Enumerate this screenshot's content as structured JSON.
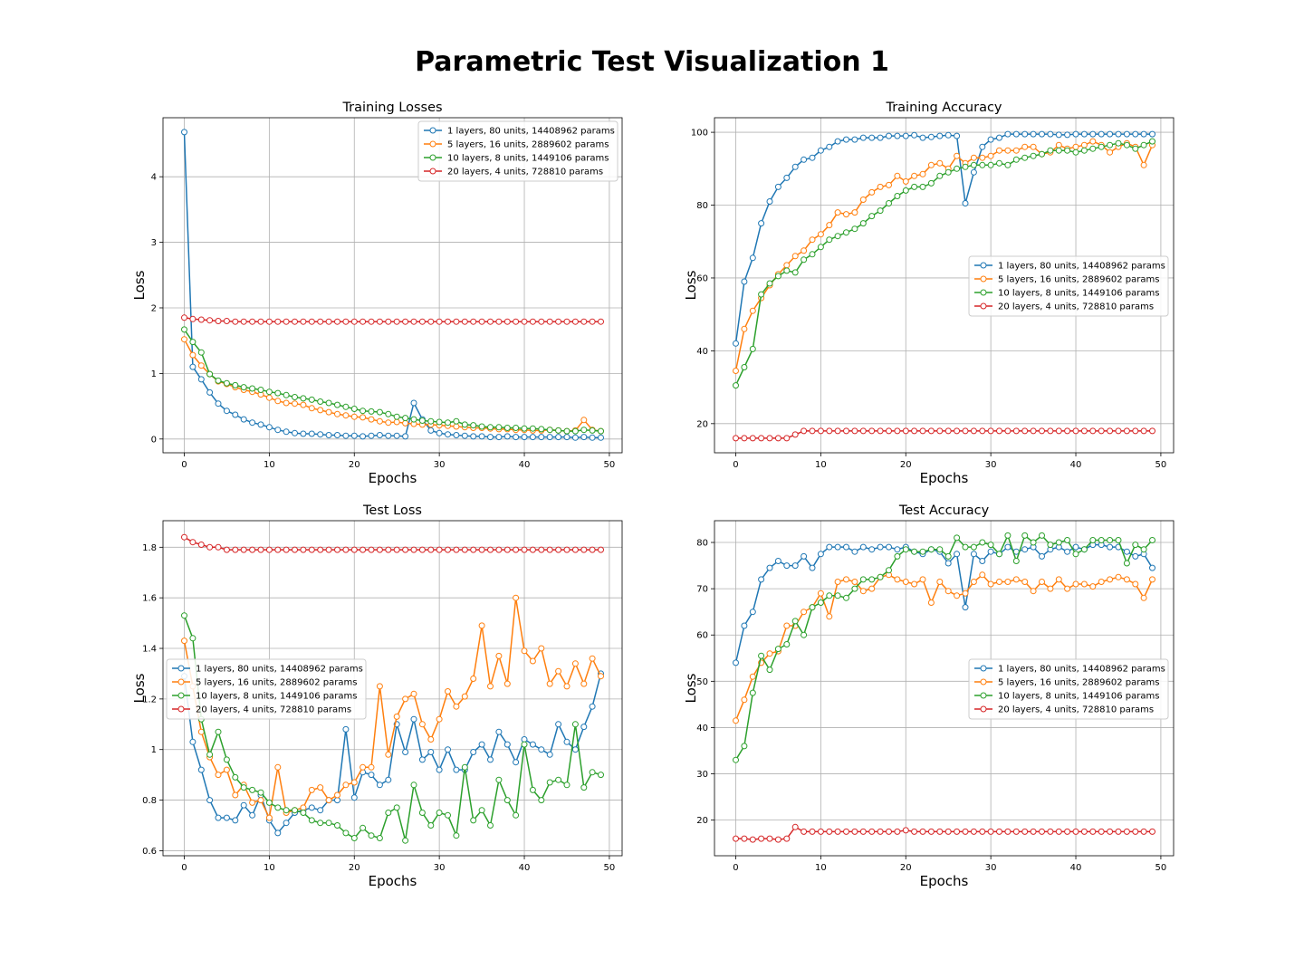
{
  "suptitle": "Parametric Test Visualization 1",
  "colors": {
    "s1": "#1f77b4",
    "s2": "#ff7f0e",
    "s3": "#2ca02c",
    "s4": "#d62728"
  },
  "chart_data": [
    {
      "type": "line",
      "title": "Training Losses",
      "xlabel": "Epochs",
      "ylabel": "Loss",
      "xlim": [
        -2.5,
        51.5
      ],
      "ylim": [
        -0.21,
        4.9
      ],
      "xticks": [
        0,
        10,
        20,
        30,
        40,
        50
      ],
      "yticks": [
        0,
        1,
        2,
        3,
        4
      ],
      "grid": true,
      "legend": "upper right",
      "series": [
        {
          "name": "1 layers, 80 units, 14408962 params",
          "color": "#1f77b4",
          "values": [
            4.68,
            1.1,
            0.91,
            0.71,
            0.54,
            0.43,
            0.37,
            0.3,
            0.25,
            0.22,
            0.18,
            0.14,
            0.11,
            0.09,
            0.08,
            0.08,
            0.07,
            0.06,
            0.06,
            0.05,
            0.05,
            0.04,
            0.05,
            0.06,
            0.05,
            0.05,
            0.04,
            0.55,
            0.3,
            0.13,
            0.09,
            0.07,
            0.06,
            0.05,
            0.04,
            0.04,
            0.03,
            0.03,
            0.04,
            0.03,
            0.03,
            0.03,
            0.03,
            0.03,
            0.03,
            0.03,
            0.02,
            0.03,
            0.02,
            0.02
          ]
        },
        {
          "name": "5 layers, 16 units, 2889602 params",
          "color": "#ff7f0e",
          "values": [
            1.52,
            1.28,
            1.12,
            0.99,
            0.88,
            0.84,
            0.79,
            0.75,
            0.72,
            0.68,
            0.63,
            0.58,
            0.55,
            0.54,
            0.52,
            0.47,
            0.44,
            0.41,
            0.38,
            0.36,
            0.34,
            0.33,
            0.3,
            0.27,
            0.25,
            0.26,
            0.24,
            0.23,
            0.22,
            0.22,
            0.21,
            0.2,
            0.19,
            0.18,
            0.17,
            0.17,
            0.16,
            0.15,
            0.15,
            0.14,
            0.14,
            0.13,
            0.13,
            0.14,
            0.13,
            0.12,
            0.13,
            0.29,
            0.14,
            0.12
          ]
        },
        {
          "name": "10 layers, 8 units, 1449106 params",
          "color": "#2ca02c",
          "values": [
            1.67,
            1.48,
            1.32,
            0.99,
            0.89,
            0.85,
            0.82,
            0.79,
            0.77,
            0.75,
            0.72,
            0.7,
            0.67,
            0.64,
            0.62,
            0.6,
            0.57,
            0.55,
            0.52,
            0.49,
            0.46,
            0.43,
            0.42,
            0.41,
            0.38,
            0.34,
            0.32,
            0.3,
            0.28,
            0.27,
            0.26,
            0.25,
            0.27,
            0.22,
            0.21,
            0.19,
            0.18,
            0.18,
            0.17,
            0.17,
            0.16,
            0.16,
            0.15,
            0.14,
            0.13,
            0.12,
            0.12,
            0.14,
            0.13,
            0.12
          ]
        },
        {
          "name": "20 layers, 4 units, 728810 params",
          "color": "#d62728",
          "values": [
            1.85,
            1.83,
            1.82,
            1.81,
            1.8,
            1.8,
            1.79,
            1.79,
            1.79,
            1.79,
            1.79,
            1.79,
            1.79,
            1.79,
            1.79,
            1.79,
            1.79,
            1.79,
            1.79,
            1.79,
            1.79,
            1.79,
            1.79,
            1.79,
            1.79,
            1.79,
            1.79,
            1.79,
            1.79,
            1.79,
            1.79,
            1.79,
            1.79,
            1.79,
            1.79,
            1.79,
            1.79,
            1.79,
            1.79,
            1.79,
            1.79,
            1.79,
            1.79,
            1.79,
            1.79,
            1.79,
            1.79,
            1.79,
            1.79,
            1.79
          ]
        }
      ]
    },
    {
      "type": "line",
      "title": "Training Accuracy",
      "xlabel": "Epochs",
      "ylabel": "Loss",
      "xlim": [
        -2.5,
        51.5
      ],
      "ylim": [
        12,
        104
      ],
      "xticks": [
        0,
        10,
        20,
        30,
        40,
        50
      ],
      "yticks": [
        20,
        40,
        60,
        80,
        100
      ],
      "grid": true,
      "legend": "center right",
      "series": [
        {
          "name": "1 layers, 80 units, 14408962 params",
          "color": "#1f77b4",
          "values": [
            42,
            59,
            65.5,
            75,
            81,
            85,
            87.5,
            90.5,
            92.5,
            93,
            95,
            96,
            97.5,
            98,
            98,
            98.5,
            98.5,
            98.5,
            99,
            99,
            99,
            99.2,
            98.5,
            98.7,
            99,
            99.2,
            99,
            80.5,
            89,
            96,
            98,
            98.5,
            99.5,
            99.5,
            99.5,
            99.5,
            99.5,
            99.5,
            99.3,
            99.3,
            99.5,
            99.5,
            99.5,
            99.5,
            99.5,
            99.5,
            99.5,
            99.5,
            99.5,
            99.5
          ]
        },
        {
          "name": "5 layers, 16 units, 2889602 params",
          "color": "#ff7f0e",
          "values": [
            34.5,
            46,
            51,
            54.5,
            58,
            61,
            63.5,
            66,
            67.5,
            70.5,
            72,
            74.5,
            78,
            77.5,
            78,
            81.5,
            83.5,
            85,
            85.5,
            88,
            86.5,
            88,
            88.5,
            91,
            91.5,
            90,
            93.5,
            91.5,
            93,
            93,
            93.5,
            95,
            95,
            95,
            96,
            96,
            94,
            94.5,
            96.5,
            95.5,
            96,
            96.5,
            97.5,
            96.5,
            94.5,
            96,
            97,
            96,
            91,
            96.5
          ]
        },
        {
          "name": "10 layers, 8 units, 1449106 params",
          "color": "#2ca02c",
          "values": [
            30.5,
            35.5,
            40.5,
            55.5,
            58.5,
            60.5,
            62,
            61.5,
            65,
            66.5,
            68.5,
            70.5,
            71.5,
            72.5,
            73.5,
            75,
            77,
            78.5,
            80.5,
            82.5,
            84,
            85,
            85,
            86,
            88,
            89,
            90,
            90.5,
            91,
            91,
            91,
            91.5,
            91,
            92.5,
            93,
            93.5,
            94,
            95,
            95,
            95,
            94.5,
            95,
            95.5,
            96,
            96.5,
            97,
            96.5,
            95.5,
            96.5,
            97.5
          ]
        },
        {
          "name": "20 layers, 4 units, 728810 params",
          "color": "#d62728",
          "values": [
            16,
            16,
            16,
            16,
            16,
            16,
            16,
            17,
            18,
            18,
            18,
            18,
            18,
            18,
            18,
            18,
            18,
            18,
            18,
            18,
            18,
            18,
            18,
            18,
            18,
            18,
            18,
            18,
            18,
            18,
            18,
            18,
            18,
            18,
            18,
            18,
            18,
            18,
            18,
            18,
            18,
            18,
            18,
            18,
            18,
            18,
            18,
            18,
            18,
            18
          ]
        }
      ]
    },
    {
      "type": "line",
      "title": "Test Loss",
      "xlabel": "Epochs",
      "ylabel": "Loss",
      "xlim": [
        -2.5,
        51.5
      ],
      "ylim": [
        0.58,
        1.905
      ],
      "xticks": [
        0,
        10,
        20,
        30,
        40,
        50
      ],
      "yticks": [
        0.6,
        0.8,
        1.0,
        1.2,
        1.4,
        1.6,
        1.8
      ],
      "grid": true,
      "legend": "center left",
      "series": [
        {
          "name": "1 layers, 80 units, 14408962 params",
          "color": "#1f77b4",
          "values": [
            1.29,
            1.03,
            0.92,
            0.8,
            0.73,
            0.73,
            0.72,
            0.78,
            0.74,
            0.82,
            0.72,
            0.67,
            0.71,
            0.75,
            0.76,
            0.77,
            0.76,
            0.8,
            0.8,
            1.08,
            0.81,
            0.91,
            0.9,
            0.86,
            0.88,
            1.1,
            0.99,
            1.12,
            0.96,
            0.99,
            0.92,
            1.0,
            0.92,
            0.92,
            0.99,
            1.02,
            0.96,
            1.07,
            1.02,
            0.95,
            1.04,
            1.02,
            1.0,
            0.98,
            1.1,
            1.03,
            1.0,
            1.09,
            1.17,
            1.3
          ]
        },
        {
          "name": "5 layers, 16 units, 2889602 params",
          "color": "#ff7f0e",
          "values": [
            1.43,
            1.25,
            1.07,
            0.97,
            0.9,
            0.92,
            0.82,
            0.86,
            0.79,
            0.8,
            0.73,
            0.93,
            0.75,
            0.76,
            0.77,
            0.84,
            0.85,
            0.8,
            0.82,
            0.86,
            0.87,
            0.93,
            0.93,
            1.25,
            0.98,
            1.13,
            1.2,
            1.22,
            1.1,
            1.04,
            1.12,
            1.23,
            1.17,
            1.21,
            1.28,
            1.49,
            1.25,
            1.37,
            1.26,
            1.6,
            1.39,
            1.35,
            1.4,
            1.26,
            1.31,
            1.25,
            1.34,
            1.26,
            1.36,
            1.29
          ]
        },
        {
          "name": "10 layers, 8 units, 1449106 params",
          "color": "#2ca02c",
          "values": [
            1.53,
            1.44,
            1.12,
            0.98,
            1.07,
            0.96,
            0.89,
            0.85,
            0.84,
            0.83,
            0.79,
            0.77,
            0.76,
            0.76,
            0.75,
            0.72,
            0.71,
            0.71,
            0.7,
            0.67,
            0.65,
            0.69,
            0.66,
            0.65,
            0.75,
            0.77,
            0.64,
            0.86,
            0.75,
            0.7,
            0.75,
            0.74,
            0.66,
            0.93,
            0.72,
            0.76,
            0.7,
            0.88,
            0.8,
            0.74,
            1.02,
            0.84,
            0.8,
            0.87,
            0.88,
            0.86,
            1.1,
            0.85,
            0.91,
            0.9
          ]
        },
        {
          "name": "20 layers, 4 units, 728810 params",
          "color": "#d62728",
          "values": [
            1.84,
            1.82,
            1.81,
            1.8,
            1.8,
            1.79,
            1.79,
            1.79,
            1.79,
            1.79,
            1.79,
            1.79,
            1.79,
            1.79,
            1.79,
            1.79,
            1.79,
            1.79,
            1.79,
            1.79,
            1.79,
            1.79,
            1.79,
            1.79,
            1.79,
            1.79,
            1.79,
            1.79,
            1.79,
            1.79,
            1.79,
            1.79,
            1.79,
            1.79,
            1.79,
            1.79,
            1.79,
            1.79,
            1.79,
            1.79,
            1.79,
            1.79,
            1.79,
            1.79,
            1.79,
            1.79,
            1.79,
            1.79,
            1.79,
            1.79
          ]
        }
      ]
    },
    {
      "type": "line",
      "title": "Test Accuracy",
      "xlabel": "Epochs",
      "ylabel": "Loss",
      "xlim": [
        -2.5,
        51.5
      ],
      "ylim": [
        12.3,
        84.7
      ],
      "xticks": [
        0,
        10,
        20,
        30,
        40,
        50
      ],
      "yticks": [
        20,
        30,
        40,
        50,
        60,
        70,
        80
      ],
      "grid": true,
      "legend": "center right",
      "series": [
        {
          "name": "1 layers, 80 units, 14408962 params",
          "color": "#1f77b4",
          "values": [
            54,
            62,
            65,
            72,
            74.5,
            76,
            75,
            75,
            77,
            74.5,
            77.5,
            79,
            79,
            79,
            78,
            79,
            78.5,
            79,
            79,
            78.5,
            79,
            78,
            77.5,
            78.5,
            78,
            75.5,
            77.5,
            66,
            77.5,
            76,
            78,
            77.5,
            79,
            78,
            78.5,
            79,
            77,
            78.5,
            79,
            78,
            79,
            78.5,
            79.5,
            79.5,
            79,
            79,
            78,
            77,
            77.5,
            74.5
          ]
        },
        {
          "name": "5 layers, 16 units, 2889602 params",
          "color": "#ff7f0e",
          "values": [
            41.5,
            46,
            51,
            54,
            56,
            56.5,
            62,
            62,
            65,
            66,
            69,
            64,
            71.5,
            72,
            71.5,
            69.5,
            70,
            72.5,
            73,
            72,
            71.5,
            71,
            72,
            67,
            71.5,
            69.5,
            68.5,
            69,
            71.5,
            73,
            71,
            71.5,
            71.5,
            72,
            71.5,
            69.5,
            71.5,
            70,
            72,
            70,
            71,
            71,
            70.5,
            71.5,
            72,
            72.5,
            72,
            71,
            68,
            72
          ]
        },
        {
          "name": "10 layers, 8 units, 1449106 params",
          "color": "#2ca02c",
          "values": [
            33,
            36,
            47.5,
            55.5,
            52.5,
            57,
            58,
            63,
            60,
            66,
            67,
            68.5,
            68.5,
            68,
            70,
            72,
            72,
            72.5,
            74,
            77,
            78.5,
            78,
            78,
            78.5,
            78.5,
            77,
            81,
            79,
            79,
            80,
            79.5,
            77.5,
            81.5,
            76,
            81.5,
            80,
            81.5,
            79.5,
            80,
            80.5,
            77.5,
            78.5,
            80.5,
            80.5,
            80.5,
            80.5,
            75.5,
            79.5,
            78.5,
            80.5
          ]
        },
        {
          "name": "20 layers, 4 units, 728810 params",
          "color": "#d62728",
          "values": [
            16,
            16,
            15.8,
            16,
            16,
            15.8,
            16,
            18.5,
            17.5,
            17.5,
            17.5,
            17.5,
            17.5,
            17.5,
            17.5,
            17.5,
            17.5,
            17.5,
            17.5,
            17.5,
            17.8,
            17.5,
            17.5,
            17.5,
            17.5,
            17.5,
            17.5,
            17.5,
            17.5,
            17.5,
            17.5,
            17.5,
            17.5,
            17.5,
            17.5,
            17.5,
            17.5,
            17.5,
            17.5,
            17.5,
            17.5,
            17.5,
            17.5,
            17.5,
            17.5,
            17.5,
            17.5,
            17.5,
            17.5,
            17.5
          ]
        }
      ]
    }
  ]
}
